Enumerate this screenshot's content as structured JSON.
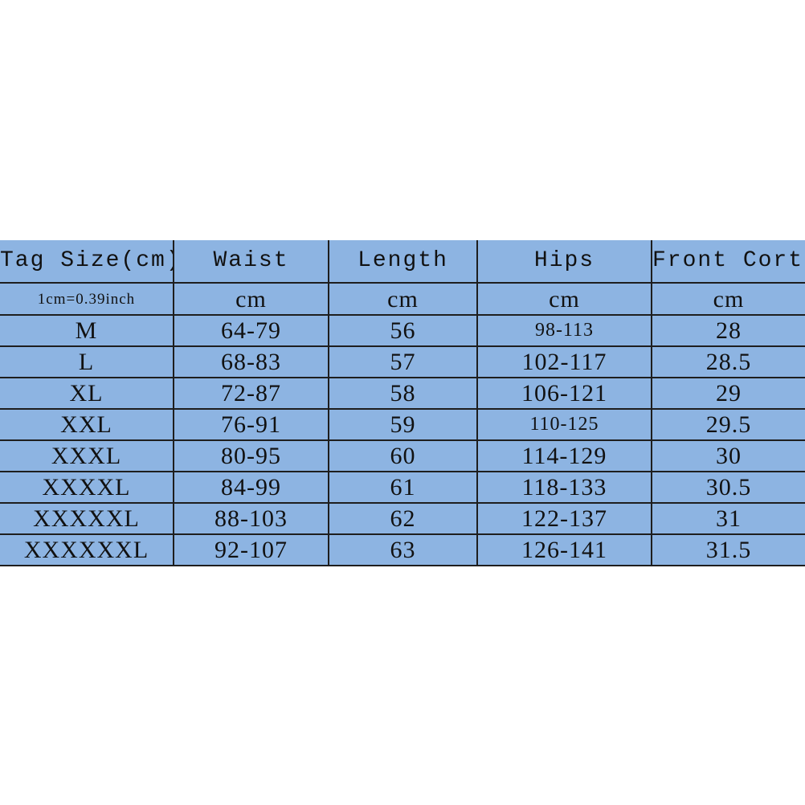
{
  "table": {
    "headers": [
      "Tag Size(cm)",
      "Waist",
      "Length",
      "Hips",
      "Front Corth"
    ],
    "units": [
      "1cm=0.39inch",
      "cm",
      "cm",
      "cm",
      "cm"
    ],
    "rows": [
      [
        "M",
        "64-79",
        "56",
        "98-113",
        "28"
      ],
      [
        "L",
        "68-83",
        "57",
        "102-117",
        "28.5"
      ],
      [
        "XL",
        "72-87",
        "58",
        "106-121",
        "29"
      ],
      [
        "XXL",
        "76-91",
        "59",
        "110-125",
        "29.5"
      ],
      [
        "XXXL",
        "80-95",
        "60",
        "114-129",
        "30"
      ],
      [
        "XXXXL",
        "84-99",
        "61",
        "118-133",
        "30.5"
      ],
      [
        "XXXXXL",
        "88-103",
        "62",
        "122-137",
        "31"
      ],
      [
        "XXXXXXL",
        "92-107",
        "63",
        "126-141",
        "31.5"
      ]
    ]
  },
  "colors": {
    "cell_background": "#8db4e2",
    "grid": "#1e1e1e",
    "page_background": "#ffffff"
  }
}
